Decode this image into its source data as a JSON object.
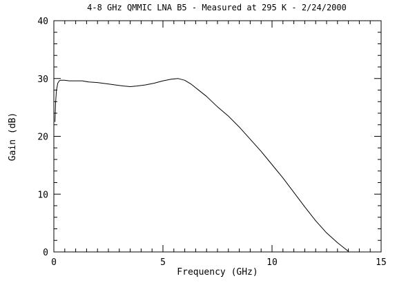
{
  "chart_data": {
    "type": "line",
    "title": "4-8 GHz QMMIC LNA B5 - Measured at 295 K - 2/24/2000",
    "xlabel": "Frequency (GHz)",
    "ylabel": "Gain (dB)",
    "xlim": [
      0,
      15
    ],
    "ylim": [
      0,
      40
    ],
    "x_ticks": [
      0,
      5,
      10,
      15
    ],
    "y_ticks": [
      0,
      10,
      20,
      30,
      40
    ],
    "x_minor_step": 0.5,
    "y_minor_step": 2,
    "grid": false,
    "line_color": "#000000",
    "series": [
      {
        "x": [
          0.05,
          0.08,
          0.12,
          0.18,
          0.25,
          0.3,
          0.4,
          0.5,
          0.7,
          1.0,
          1.3,
          1.6,
          2.0,
          2.4,
          2.8,
          3.2,
          3.5,
          3.8,
          4.2,
          4.6,
          5.0,
          5.4,
          5.7,
          6.0,
          6.3,
          6.6,
          7.0,
          7.5,
          8.0,
          8.5,
          9.0,
          9.5,
          10.0,
          10.5,
          11.0,
          11.5,
          12.0,
          12.5,
          13.0,
          13.3,
          13.5
        ],
        "y": [
          22.5,
          25.8,
          28.0,
          29.2,
          29.6,
          29.7,
          29.7,
          29.7,
          29.6,
          29.6,
          29.6,
          29.4,
          29.3,
          29.1,
          28.9,
          28.7,
          28.6,
          28.7,
          28.9,
          29.2,
          29.6,
          29.9,
          30.0,
          29.7,
          29.0,
          28.1,
          26.9,
          25.1,
          23.5,
          21.6,
          19.5,
          17.4,
          15.1,
          12.8,
          10.3,
          7.8,
          5.4,
          3.3,
          1.6,
          0.7,
          0.1
        ]
      }
    ]
  }
}
